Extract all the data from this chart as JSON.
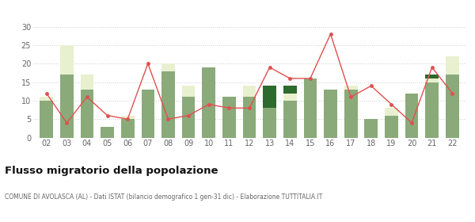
{
  "years": [
    "02",
    "03",
    "04",
    "05",
    "06",
    "07",
    "08",
    "09",
    "10",
    "11",
    "12",
    "13",
    "14",
    "15",
    "16",
    "17",
    "18",
    "19",
    "20",
    "21",
    "22"
  ],
  "iscritti_comuni": [
    10,
    17,
    13,
    3,
    5,
    13,
    18,
    11,
    19,
    11,
    11,
    8,
    10,
    16,
    13,
    13,
    5,
    6,
    12,
    15,
    17
  ],
  "iscritti_estero": [
    1,
    8,
    4,
    0,
    1,
    0,
    2,
    3,
    0,
    0,
    3,
    0,
    2,
    0,
    0,
    1,
    0,
    2,
    0,
    1,
    5
  ],
  "iscritti_altri": [
    0,
    0,
    0,
    0,
    0,
    0,
    0,
    0,
    0,
    0,
    0,
    6,
    2,
    0,
    0,
    0,
    0,
    0,
    0,
    1,
    0
  ],
  "cancellati": [
    12,
    4,
    11,
    6,
    5,
    20,
    5,
    6,
    9,
    8,
    8,
    19,
    16,
    16,
    28,
    11,
    14,
    9,
    4,
    19,
    12
  ],
  "color_comuni": "#8aaa7a",
  "color_estero": "#e8f0d0",
  "color_altri": "#2d6a2d",
  "color_cancellati": "#e05050",
  "ylim": [
    0,
    30
  ],
  "yticks": [
    0,
    5,
    10,
    15,
    20,
    25,
    30
  ],
  "title": "Flusso migratorio della popolazione",
  "subtitle": "COMUNE DI AVOLASCA (AL) - Dati ISTAT (bilancio demografico 1 gen-31 dic) - Elaborazione TUTTITALIA.IT",
  "bg_color": "#ffffff",
  "grid_color": "#cccccc"
}
